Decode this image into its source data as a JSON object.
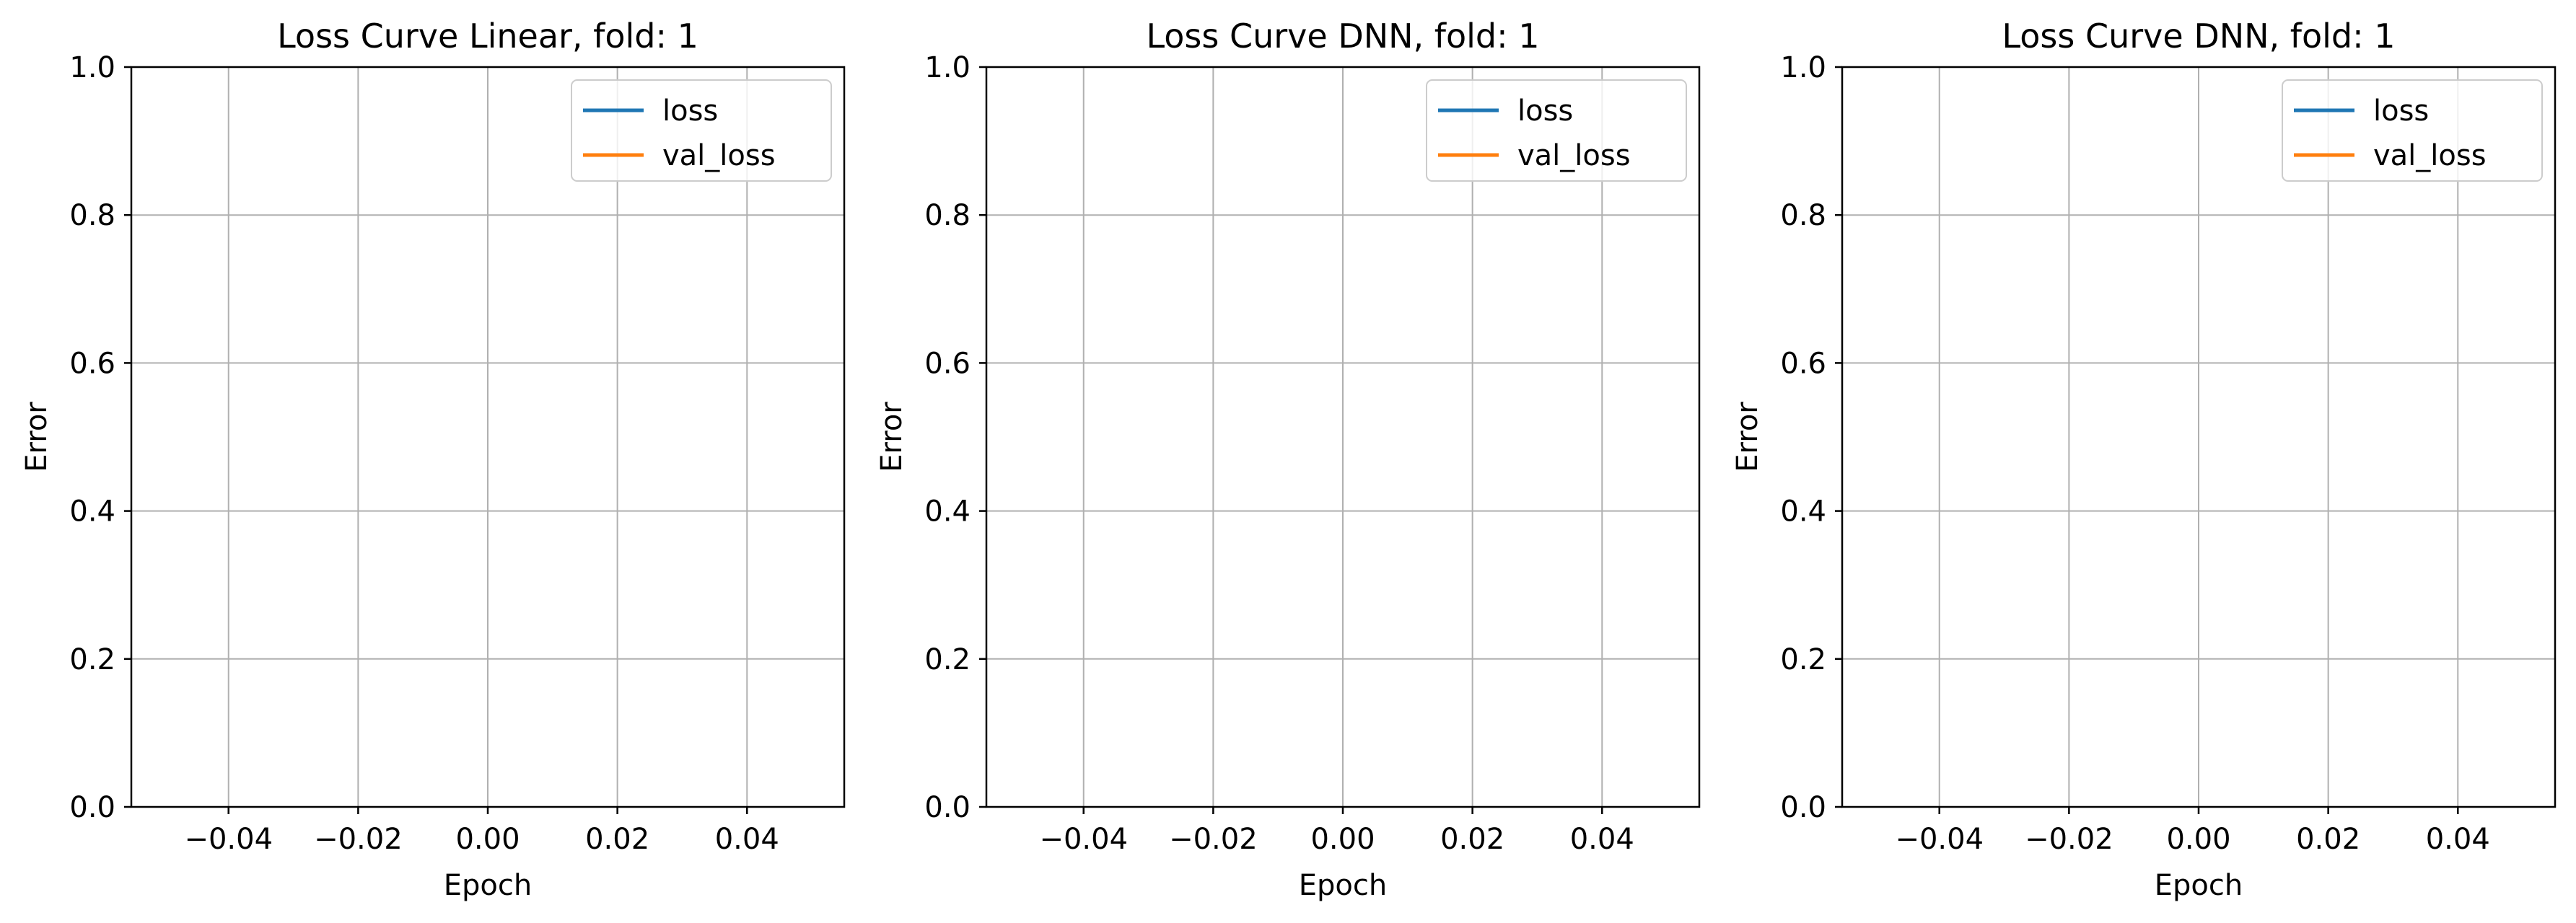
{
  "chart_data": [
    {
      "type": "line",
      "title": "Loss Curve Linear, fold: 1",
      "xlabel": "Epoch",
      "ylabel": "Error",
      "xlim": [
        -0.055,
        0.055
      ],
      "ylim": [
        0.0,
        1.0
      ],
      "xticks": [
        "−0.04",
        "−0.02",
        "0.00",
        "0.02",
        "0.04"
      ],
      "xtick_values": [
        -0.04,
        -0.02,
        0.0,
        0.02,
        0.04
      ],
      "yticks": [
        "0.0",
        "0.2",
        "0.4",
        "0.6",
        "0.8",
        "1.0"
      ],
      "ytick_values": [
        0.0,
        0.2,
        0.4,
        0.6,
        0.8,
        1.0
      ],
      "grid": true,
      "legend_position": "top-right",
      "series": [
        {
          "name": "loss",
          "color": "#1f77b4",
          "x": [],
          "y": []
        },
        {
          "name": "val_loss",
          "color": "#ff7f0e",
          "x": [],
          "y": []
        }
      ]
    },
    {
      "type": "line",
      "title": "Loss Curve DNN, fold: 1",
      "xlabel": "Epoch",
      "ylabel": "Error",
      "xlim": [
        -0.055,
        0.055
      ],
      "ylim": [
        0.0,
        1.0
      ],
      "xticks": [
        "−0.04",
        "−0.02",
        "0.00",
        "0.02",
        "0.04"
      ],
      "xtick_values": [
        -0.04,
        -0.02,
        0.0,
        0.02,
        0.04
      ],
      "yticks": [
        "0.0",
        "0.2",
        "0.4",
        "0.6",
        "0.8",
        "1.0"
      ],
      "ytick_values": [
        0.0,
        0.2,
        0.4,
        0.6,
        0.8,
        1.0
      ],
      "grid": true,
      "legend_position": "top-right",
      "series": [
        {
          "name": "loss",
          "color": "#1f77b4",
          "x": [],
          "y": []
        },
        {
          "name": "val_loss",
          "color": "#ff7f0e",
          "x": [],
          "y": []
        }
      ]
    },
    {
      "type": "line",
      "title": "Loss Curve DNN, fold: 1",
      "xlabel": "Epoch",
      "ylabel": "Error",
      "xlim": [
        -0.055,
        0.055
      ],
      "ylim": [
        0.0,
        1.0
      ],
      "xticks": [
        "−0.04",
        "−0.02",
        "0.00",
        "0.02",
        "0.04"
      ],
      "xtick_values": [
        -0.04,
        -0.02,
        0.0,
        0.02,
        0.04
      ],
      "yticks": [
        "0.0",
        "0.2",
        "0.4",
        "0.6",
        "0.8",
        "1.0"
      ],
      "ytick_values": [
        0.0,
        0.2,
        0.4,
        0.6,
        0.8,
        1.0
      ],
      "grid": true,
      "legend_position": "top-right",
      "series": [
        {
          "name": "loss",
          "color": "#1f77b4",
          "x": [],
          "y": []
        },
        {
          "name": "val_loss",
          "color": "#ff7f0e",
          "x": [],
          "y": []
        }
      ]
    }
  ]
}
